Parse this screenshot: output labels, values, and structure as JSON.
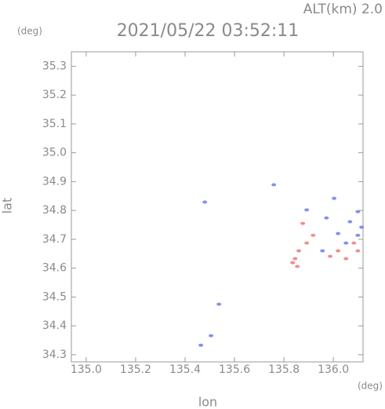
{
  "chart_data": {
    "type": "scatter",
    "title": "2021/05/22 03:52:11",
    "subtitle": "ALT(km) 2.0",
    "x_label": "lon",
    "y_label": "lat",
    "x_unit": "(deg)",
    "y_unit": "(deg)",
    "xlim": [
      134.94,
      136.12
    ],
    "ylim": [
      34.275,
      35.35
    ],
    "xticks": [
      {
        "value": 135.0,
        "label": "135.0"
      },
      135.2,
      135.4,
      135.6,
      135.8,
      {
        "value": 136.0,
        "label": "136.0"
      }
    ],
    "yticks": [
      34.3,
      34.4,
      34.5,
      34.6,
      34.7,
      34.8,
      34.9,
      {
        "value": 35.0,
        "label": "35.0"
      },
      35.1,
      35.2,
      35.3
    ],
    "series": [
      {
        "color": "#6f7fe8",
        "x": [
          135.48,
          135.759,
          135.537,
          135.464,
          135.505,
          136.003,
          135.972,
          136.067,
          136.099,
          136.019,
          136.099,
          136.051,
          136.114,
          135.892,
          135.956
        ],
        "y": [
          34.829,
          34.889,
          34.475,
          34.333,
          34.366,
          34.842,
          34.774,
          34.761,
          34.796,
          34.72,
          34.714,
          34.687,
          34.742,
          34.802,
          34.66
        ]
      },
      {
        "color": "#ec7a7a",
        "x": [
          135.845,
          135.86,
          135.835,
          135.892,
          135.987,
          136.019,
          136.051,
          136.083,
          135.918,
          135.876,
          136.099,
          135.854
        ],
        "y": [
          34.633,
          34.66,
          34.619,
          34.687,
          34.641,
          34.66,
          34.633,
          34.687,
          34.714,
          34.755,
          34.66,
          34.606
        ]
      }
    ]
  }
}
